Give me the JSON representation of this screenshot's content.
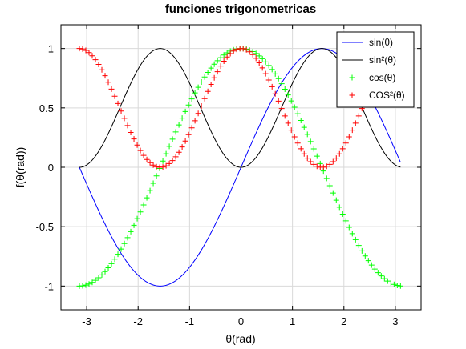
{
  "chart_data": {
    "type": "line",
    "title": "funciones trigonometricas",
    "xlabel": "θ(rad)",
    "ylabel": "f(θ(rad))",
    "xlim": [
      -3.5,
      3.5
    ],
    "ylim": [
      -1.2,
      1.2
    ],
    "xticks": [
      -3,
      -2,
      -1,
      0,
      1,
      2,
      3
    ],
    "yticks": [
      -1,
      -0.5,
      0,
      0.5,
      1
    ],
    "xtick_labels": [
      "-3",
      "-2",
      "-1",
      "0",
      "1",
      "2",
      "3"
    ],
    "ytick_labels": [
      "-1",
      "-0.5",
      "0",
      "0.5",
      "1"
    ],
    "grid": true,
    "legend_position": "top-right",
    "x_range": [
      -3.1416,
      3.1
    ],
    "series": [
      {
        "name": "sin(θ)",
        "style": "line",
        "color": "#0000ff",
        "function": "sin(θ)"
      },
      {
        "name": "sin²(θ)",
        "style": "line",
        "color": "#000000",
        "function": "sin(θ)^2"
      },
      {
        "name": "cos(θ)",
        "style": "plus-marker",
        "color": "#00ff00",
        "function": "cos(θ)"
      },
      {
        "name": "COS²(θ)",
        "style": "plus-marker",
        "color": "#ff0000",
        "function": "cos(θ)^2"
      }
    ]
  }
}
